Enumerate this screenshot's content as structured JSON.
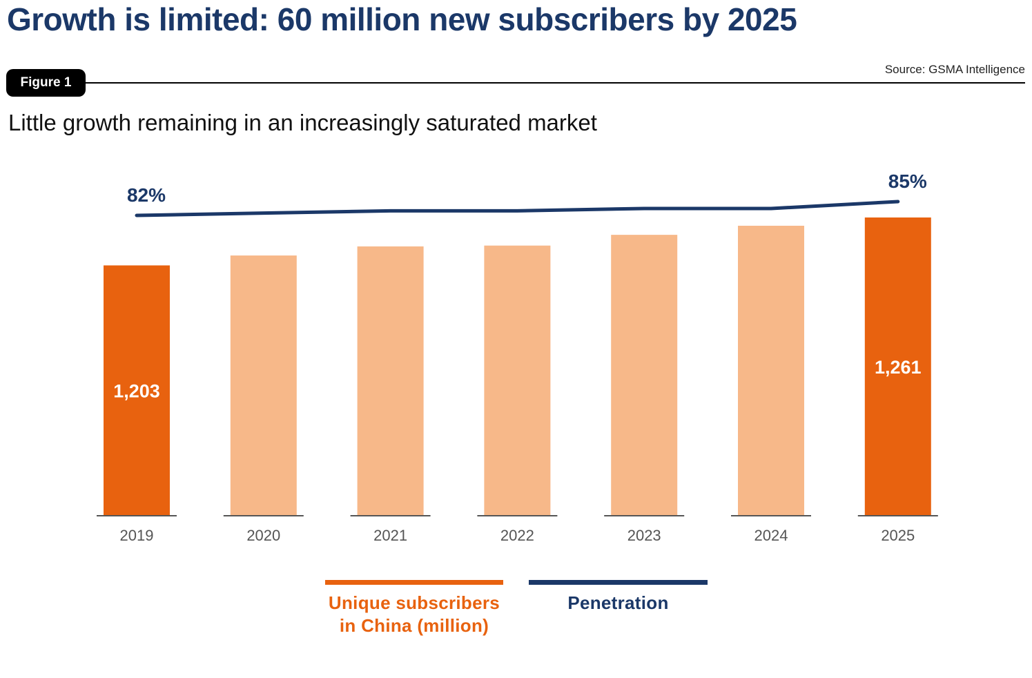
{
  "header": {
    "headline": "Growth is limited: 60 million new subscribers by 2025",
    "figure_label": "Figure 1",
    "source": "Source: GSMA Intelligence",
    "subtitle": "Little growth remaining in an increasingly saturated market"
  },
  "colors": {
    "highlight_bar": "#e8620f",
    "light_bar": "#f7b889",
    "penetration_line": "#1b3868",
    "axis": "#555555",
    "bar_label": "#ffffff"
  },
  "chart_data": {
    "type": "bar",
    "categories": [
      "2019",
      "2020",
      "2021",
      "2022",
      "2023",
      "2024",
      "2025"
    ],
    "series": [
      {
        "name": "Unique subscribers in China (million)",
        "values": [
          1203,
          1215,
          1226,
          1227,
          1240,
          1251,
          1261
        ],
        "highlighted": [
          "2019",
          "2025"
        ],
        "data_labels": [
          "1,203",
          "",
          "",
          "",
          "",
          "",
          "1,261"
        ]
      },
      {
        "name": "Penetration",
        "type": "line",
        "values": [
          82,
          82.5,
          83,
          83,
          83.5,
          83.5,
          85
        ],
        "data_labels": [
          "82%",
          "",
          "",
          "",
          "",
          "",
          "85%"
        ]
      }
    ],
    "ylim": [
      0,
      1261
    ],
    "grid": false,
    "legend_position": "bottom"
  }
}
